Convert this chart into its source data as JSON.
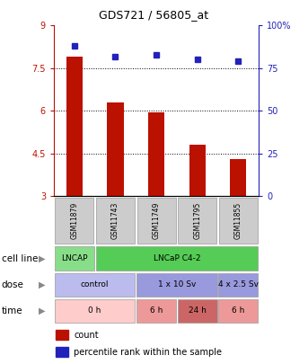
{
  "title": "GDS721 / 56805_at",
  "samples": [
    "GSM11879",
    "GSM11743",
    "GSM11749",
    "GSM11795",
    "GSM11855"
  ],
  "bar_values": [
    7.9,
    6.3,
    5.95,
    4.8,
    4.3
  ],
  "bar_color": "#bb1100",
  "dot_values": [
    88,
    82,
    83,
    80,
    79
  ],
  "dot_color": "#2222bb",
  "ylim_left": [
    3,
    9
  ],
  "ylim_right": [
    0,
    100
  ],
  "yticks_left": [
    3,
    4.5,
    6,
    7.5,
    9
  ],
  "yticks_right": [
    0,
    25,
    50,
    75,
    100
  ],
  "ytick_labels_left": [
    "3",
    "4.5",
    "6",
    "7.5",
    "9"
  ],
  "ytick_labels_right": [
    "0",
    "25",
    "50",
    "75",
    "100%"
  ],
  "hlines": [
    4.5,
    6.0,
    7.5
  ],
  "cell_line_row": {
    "label": "cell line",
    "groups": [
      {
        "text": "LNCAP",
        "span": [
          0,
          1
        ],
        "color": "#88dd88"
      },
      {
        "text": "LNCaP C4-2",
        "span": [
          1,
          5
        ],
        "color": "#55cc55"
      }
    ]
  },
  "dose_row": {
    "label": "dose",
    "groups": [
      {
        "text": "control",
        "span": [
          0,
          2
        ],
        "color": "#bbbbee"
      },
      {
        "text": "1 x 10 Sv",
        "span": [
          2,
          4
        ],
        "color": "#9999dd"
      },
      {
        "text": "4 x 2.5 Sv",
        "span": [
          4,
          5
        ],
        "color": "#9999dd"
      }
    ]
  },
  "time_row": {
    "label": "time",
    "groups": [
      {
        "text": "0 h",
        "span": [
          0,
          2
        ],
        "color": "#ffcccc"
      },
      {
        "text": "6 h",
        "span": [
          2,
          3
        ],
        "color": "#ee9999"
      },
      {
        "text": "24 h",
        "span": [
          3,
          4
        ],
        "color": "#cc6666"
      },
      {
        "text": "6 h",
        "span": [
          4,
          5
        ],
        "color": "#ee9999"
      }
    ]
  },
  "legend_items": [
    {
      "label": "count",
      "color": "#bb1100"
    },
    {
      "label": "percentile rank within the sample",
      "color": "#2222bb"
    }
  ],
  "bar_bottom": 3.0,
  "sample_bg": "#cccccc",
  "sample_fontsize": 5.5,
  "annotation_fontsize": 6.5,
  "axis_fontsize": 7,
  "title_fontsize": 9,
  "legend_fontsize": 7
}
